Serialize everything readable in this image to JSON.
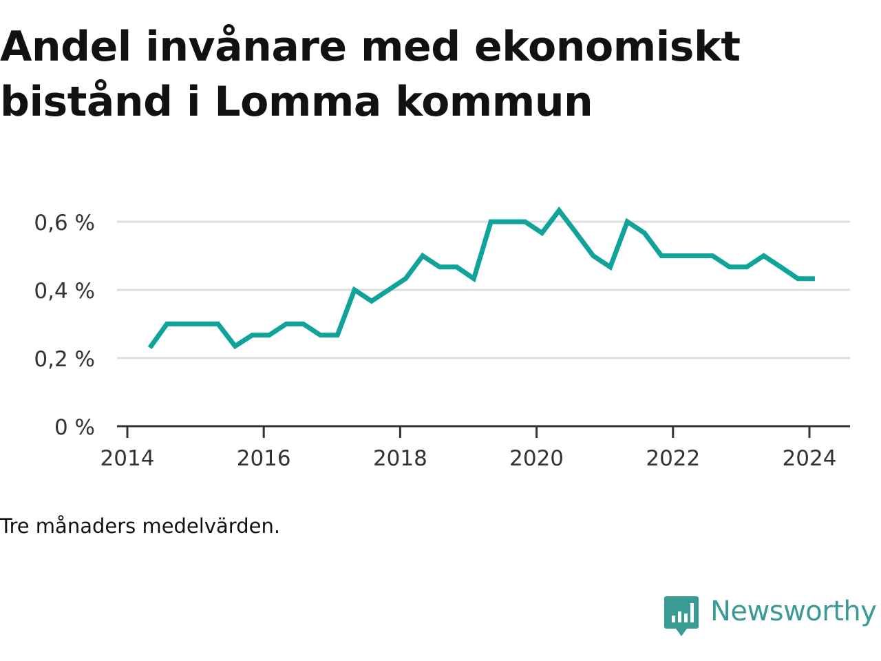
{
  "title": "Andel invånare med ekonomiskt bistånd i Lomma kommun",
  "note": "Tre månaders medelvärden.",
  "brand": {
    "name": "Newsworthy",
    "icon": "chart-bubble-icon"
  },
  "colors": {
    "line": "#0fa39a",
    "brand": "#3a9a94",
    "grid": "#dddddd",
    "axis": "#333333"
  },
  "chart_data": {
    "type": "line",
    "title": "Andel invånare med ekonomiskt bistånd i Lomma kommun",
    "xlabel": "",
    "ylabel": "",
    "xlim": [
      2014.0,
      2024.6
    ],
    "ylim": [
      0,
      0.7
    ],
    "yticks": [
      0,
      0.2,
      0.4,
      0.6
    ],
    "ytick_labels": [
      "0 %",
      "0,2 %",
      "0,4 %",
      "0,6 %"
    ],
    "xticks": [
      2014,
      2016,
      2018,
      2020,
      2022,
      2024
    ],
    "xtick_labels": [
      "2014",
      "2016",
      "2018",
      "2020",
      "2022",
      "2024"
    ],
    "grid": true,
    "series": [
      {
        "x": [
          2014.33,
          2014.58,
          2014.83,
          2015.08,
          2015.33,
          2015.58,
          2015.83,
          2016.08,
          2016.33,
          2016.58,
          2016.83,
          2017.08,
          2017.33,
          2017.58,
          2017.83,
          2018.08,
          2018.33,
          2018.58,
          2018.83,
          2019.08,
          2019.33,
          2019.58,
          2019.83,
          2020.08,
          2020.33,
          2020.58,
          2020.83,
          2021.08,
          2021.33,
          2021.58,
          2021.83,
          2022.08,
          2022.33,
          2022.58,
          2022.83,
          2023.08,
          2023.33,
          2023.58,
          2023.83,
          2024.08
        ],
        "y": [
          0.23,
          0.3,
          0.3,
          0.3,
          0.3,
          0.235,
          0.267,
          0.267,
          0.3,
          0.3,
          0.267,
          0.267,
          0.4,
          0.367,
          0.4,
          0.433,
          0.5,
          0.467,
          0.467,
          0.433,
          0.6,
          0.6,
          0.6,
          0.567,
          0.633,
          0.567,
          0.5,
          0.467,
          0.6,
          0.567,
          0.5,
          0.5,
          0.5,
          0.5,
          0.467,
          0.467,
          0.5,
          0.467,
          0.433,
          0.433
        ]
      }
    ]
  }
}
